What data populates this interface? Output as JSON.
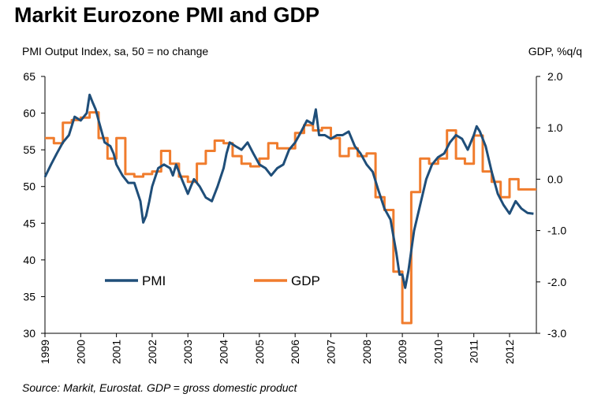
{
  "chart_data": {
    "type": "line",
    "title": "Markit Eurozone PMI and GDP",
    "left_axis_label": "PMI Output Index, sa, 50 = no change",
    "right_axis_label": "GDP, %q/q",
    "source": "Source: Markit, Eurostat. GDP = gross domestic product",
    "x_range": [
      1999.0,
      2012.75
    ],
    "x_ticks": [
      "1999",
      "2000",
      "2001",
      "2002",
      "2003",
      "2004",
      "2005",
      "2006",
      "2007",
      "2008",
      "2009",
      "2010",
      "2011",
      "2012"
    ],
    "y_left": {
      "range": [
        30,
        65
      ],
      "ticks": [
        "30",
        "35",
        "40",
        "45",
        "50",
        "55",
        "60",
        "65"
      ]
    },
    "y_right": {
      "range": [
        -3.0,
        2.0
      ],
      "ticks": [
        "-3.0",
        "-2.0",
        "-1.0",
        "0.0",
        "1.0",
        "2.0"
      ]
    },
    "legend_placement": "center-left",
    "series": [
      {
        "name": "PMI",
        "axis": "left",
        "color": "#1f4e79",
        "x": [
          1999.0,
          1999.17,
          1999.33,
          1999.5,
          1999.67,
          1999.83,
          2000.0,
          2000.17,
          2000.25,
          2000.33,
          2000.42,
          2000.5,
          2000.67,
          2000.83,
          2000.92,
          2001.0,
          2001.17,
          2001.33,
          2001.5,
          2001.67,
          2001.75,
          2001.83,
          2001.92,
          2002.0,
          2002.17,
          2002.33,
          2002.5,
          2002.58,
          2002.67,
          2002.83,
          2003.0,
          2003.08,
          2003.17,
          2003.33,
          2003.5,
          2003.67,
          2003.83,
          2004.0,
          2004.08,
          2004.17,
          2004.33,
          2004.5,
          2004.67,
          2004.83,
          2005.0,
          2005.17,
          2005.33,
          2005.5,
          2005.67,
          2005.83,
          2006.0,
          2006.17,
          2006.33,
          2006.5,
          2006.58,
          2006.67,
          2006.83,
          2007.0,
          2007.17,
          2007.33,
          2007.5,
          2007.67,
          2007.83,
          2008.0,
          2008.17,
          2008.33,
          2008.5,
          2008.67,
          2008.83,
          2008.92,
          2009.0,
          2009.08,
          2009.17,
          2009.33,
          2009.5,
          2009.67,
          2009.83,
          2010.0,
          2010.17,
          2010.33,
          2010.5,
          2010.67,
          2010.83,
          2011.0,
          2011.08,
          2011.17,
          2011.33,
          2011.5,
          2011.67,
          2011.83,
          2012.0,
          2012.17,
          2012.33,
          2012.5,
          2012.67
        ],
        "values": [
          51.3,
          53.0,
          54.5,
          56.0,
          57.0,
          59.5,
          59.0,
          60.0,
          62.5,
          61.5,
          60.5,
          59.0,
          56.0,
          55.5,
          54.5,
          53.0,
          51.5,
          50.5,
          50.5,
          48.0,
          45.1,
          46.0,
          48.0,
          50.0,
          52.5,
          53.0,
          52.5,
          51.5,
          53.0,
          51.0,
          49.0,
          50.0,
          51.0,
          50.0,
          48.5,
          48.0,
          50.0,
          52.5,
          54.5,
          56.0,
          55.5,
          55.0,
          56.0,
          54.5,
          53.0,
          52.5,
          51.5,
          52.5,
          53.0,
          55.0,
          56.0,
          57.5,
          59.0,
          58.5,
          60.5,
          57.0,
          57.0,
          56.5,
          57.0,
          57.0,
          57.5,
          55.5,
          54.5,
          53.0,
          52.0,
          49.5,
          47.0,
          45.5,
          41.0,
          38.0,
          38.0,
          36.2,
          38.5,
          44.0,
          47.5,
          51.0,
          53.0,
          54.0,
          54.5,
          56.0,
          57.0,
          56.5,
          55.0,
          57.0,
          58.2,
          57.5,
          55.5,
          52.0,
          49.0,
          47.5,
          46.3,
          48.0,
          47.0,
          46.4,
          46.3
        ]
      },
      {
        "name": "GDP",
        "axis": "right",
        "color": "#f07c2d",
        "x": [
          1999.0,
          1999.25,
          1999.5,
          1999.75,
          2000.0,
          2000.25,
          2000.5,
          2000.75,
          2001.0,
          2001.25,
          2001.5,
          2001.75,
          2002.0,
          2002.25,
          2002.5,
          2002.75,
          2003.0,
          2003.25,
          2003.5,
          2003.75,
          2004.0,
          2004.25,
          2004.5,
          2004.75,
          2005.0,
          2005.25,
          2005.5,
          2005.75,
          2006.0,
          2006.25,
          2006.5,
          2006.75,
          2007.0,
          2007.25,
          2007.5,
          2007.75,
          2008.0,
          2008.25,
          2008.5,
          2008.75,
          2009.0,
          2009.25,
          2009.5,
          2009.75,
          2010.0,
          2010.25,
          2010.5,
          2010.75,
          2011.0,
          2011.25,
          2011.5,
          2011.75,
          2012.0,
          2012.25,
          2012.5
        ],
        "values": [
          0.8,
          0.7,
          1.1,
          1.15,
          1.2,
          1.3,
          0.8,
          0.4,
          0.8,
          0.1,
          0.05,
          0.1,
          0.15,
          0.55,
          0.3,
          0.05,
          -0.05,
          0.3,
          0.55,
          0.75,
          0.7,
          0.45,
          0.3,
          0.25,
          0.4,
          0.7,
          0.6,
          0.6,
          0.9,
          1.05,
          0.95,
          1.0,
          0.8,
          0.45,
          0.6,
          0.45,
          0.5,
          -0.35,
          -0.6,
          -1.8,
          -2.8,
          -0.25,
          0.4,
          0.3,
          0.4,
          0.95,
          0.4,
          0.3,
          0.85,
          0.15,
          -0.05,
          -0.35,
          0.0,
          -0.2,
          -0.2
        ]
      }
    ]
  }
}
